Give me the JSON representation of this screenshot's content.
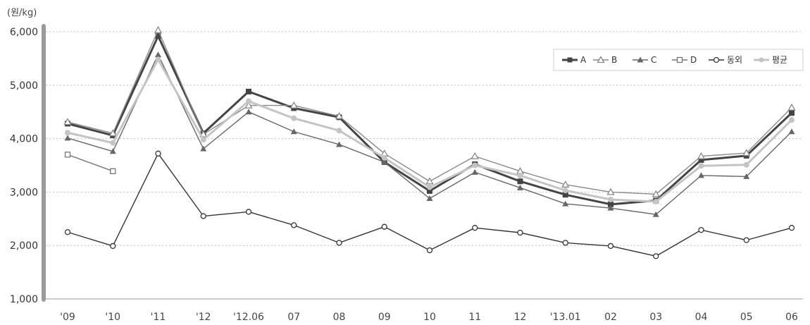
{
  "chart_data": {
    "type": "line",
    "unit_label": "(원/kg)",
    "categories": [
      "'09",
      "'10",
      "'11",
      "'12",
      "'12.06",
      "07",
      "08",
      "09",
      "10",
      "11",
      "12",
      "'13.01",
      "02",
      "03",
      "04",
      "05",
      "06"
    ],
    "ylim": [
      1000,
      6000
    ],
    "yticks": [
      "1,000",
      "2,000",
      "3,000",
      "4,000",
      "5,000",
      "6,000"
    ],
    "ytick_values": [
      1000,
      2000,
      3000,
      4000,
      5000,
      6000
    ],
    "grid": true,
    "legend_position": "top-right",
    "series": [
      {
        "name": "A",
        "color": "#444444",
        "marker": "square-filled",
        "width": 3,
        "values": [
          4280,
          4060,
          5920,
          4100,
          4880,
          4570,
          4400,
          3560,
          3020,
          3520,
          3200,
          2950,
          2770,
          2840,
          3600,
          3680,
          4480
        ]
      },
      {
        "name": "B",
        "color": "#888888",
        "marker": "triangle-open",
        "width": 1.4,
        "values": [
          4310,
          4100,
          6030,
          4080,
          4620,
          4620,
          4420,
          3720,
          3200,
          3670,
          3390,
          3140,
          3000,
          2960,
          3670,
          3730,
          4580
        ]
      },
      {
        "name": "C",
        "color": "#666666",
        "marker": "triangle-filled",
        "width": 1.4,
        "values": [
          4010,
          3760,
          5570,
          3810,
          4500,
          4130,
          3890,
          3560,
          2880,
          3370,
          3080,
          2780,
          2700,
          2580,
          3310,
          3290,
          4130
        ]
      },
      {
        "name": "D",
        "color": "#777777",
        "marker": "square-open",
        "width": 1.4,
        "values": [
          3700,
          3390,
          null,
          null,
          null,
          null,
          null,
          null,
          null,
          null,
          null,
          null,
          null,
          null,
          null,
          null,
          null
        ]
      },
      {
        "name": "동외",
        "color": "#333333",
        "marker": "circle-open",
        "width": 1.4,
        "values": [
          2250,
          1990,
          3720,
          2550,
          2630,
          2380,
          2050,
          2350,
          1910,
          2330,
          2240,
          2050,
          1990,
          1800,
          2290,
          2100,
          2330
        ]
      },
      {
        "name": "평균",
        "color": "#c4c4c4",
        "marker": "circle-filled",
        "width": 3,
        "values": [
          4110,
          3920,
          5480,
          3980,
          4700,
          4380,
          4150,
          3640,
          3090,
          3500,
          3310,
          3030,
          2860,
          2820,
          3490,
          3510,
          4350
        ]
      }
    ]
  }
}
